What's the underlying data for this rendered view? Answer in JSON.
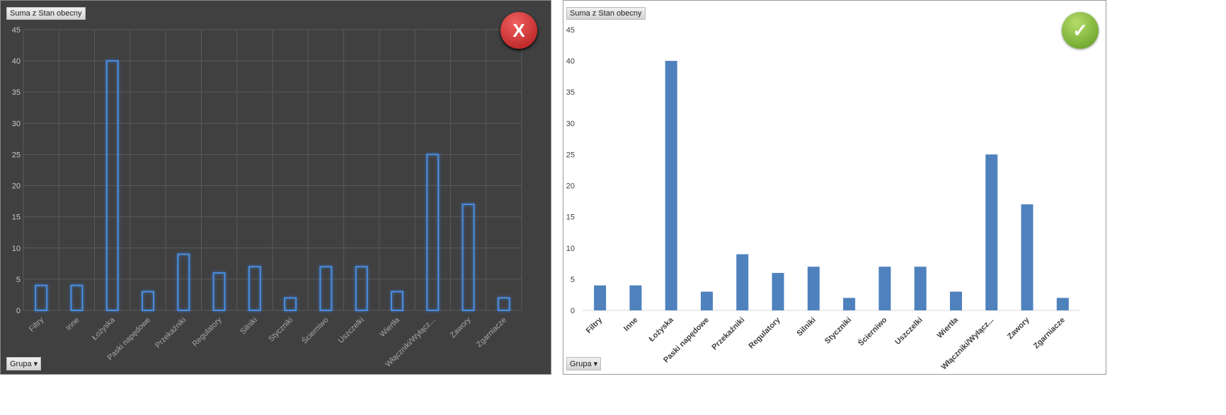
{
  "chart_data": [
    {
      "type": "bar",
      "style": "dark-outline",
      "verdict": "X",
      "field_button": "Suma z Stan obecny",
      "axis_button": "Grupa",
      "categories": [
        "Filtry",
        "Inne",
        "Łożyska",
        "Paski napędowe",
        "Przekaźniki",
        "Regulatory",
        "Silniki",
        "Styczniki",
        "Ścierniwo",
        "Uszczelki",
        "Wiertła",
        "Włączniki/Wyłącz...",
        "Zawory",
        "Zgarniacze"
      ],
      "values": [
        4,
        4,
        40,
        3,
        9,
        6,
        7,
        2,
        7,
        7,
        3,
        25,
        17,
        2
      ],
      "yticks": [
        0,
        5,
        10,
        15,
        20,
        25,
        30,
        35,
        40,
        45
      ],
      "ylim": [
        0,
        45
      ],
      "grid": true,
      "colors": {
        "bar": "#4a8ee0",
        "label": "#a8a8a8",
        "grid": "#5a5a5a"
      }
    },
    {
      "type": "bar",
      "style": "light-filled",
      "verdict": "✓",
      "field_button": "Suma z Stan obecny",
      "axis_button": "Grupa",
      "categories": [
        "Filtry",
        "Inne",
        "Łożyska",
        "Paski napędowe",
        "Przekaźniki",
        "Regulatory",
        "Silniki",
        "Styczniki",
        "Ścierniwo",
        "Uszczelki",
        "Wiertła",
        "Włączniki/Wyłącz...",
        "Zawory",
        "Zgarniacze"
      ],
      "values": [
        4,
        4,
        40,
        3,
        9,
        6,
        7,
        2,
        7,
        7,
        3,
        25,
        17,
        2
      ],
      "yticks": [
        0,
        5,
        10,
        15,
        20,
        25,
        30,
        35,
        40,
        45
      ],
      "ylim": [
        0,
        45
      ],
      "grid": false,
      "colors": {
        "bar": "#4f81bd",
        "label": "#404040",
        "grid": "#d9d9d9"
      }
    }
  ]
}
